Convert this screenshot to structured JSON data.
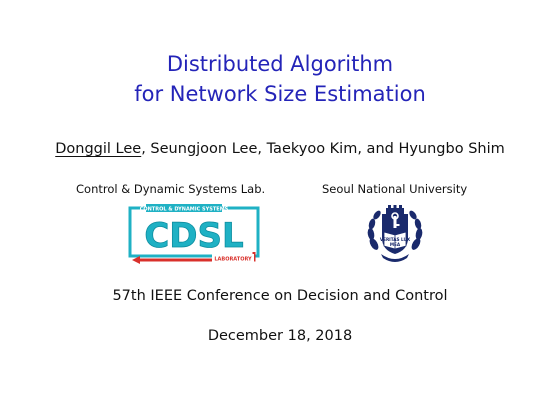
{
  "slide": {
    "title_line1": "Distributed Algorithm",
    "title_line2": "for Network Size Estimation",
    "presenter": "Donggil Lee",
    "coauthors": ", Seungjoon Lee, Taekyoo Kim, and Hyungbo Shim",
    "affiliation_left": "Control & Dynamic Systems Lab.",
    "affiliation_right": "Seoul National University",
    "conference": "57th IEEE Conference on Decision and Control",
    "date": "December 18, 2018"
  },
  "logos": {
    "cdsl": {
      "main_text": "CDSL",
      "top_text": "CONTROL & DYNAMIC SYSTEMS",
      "bottom_text": "LABORATORY",
      "colors": {
        "teal": "#1fb1c4",
        "red": "#d9302b"
      }
    },
    "snu": {
      "book_text_top": "VERITAS LUX",
      "book_text_bottom": "MEA",
      "colors": {
        "navy": "#1a2a6c"
      }
    }
  },
  "colors": {
    "title": "#2424b8",
    "text": "#111111",
    "background": "#ffffff"
  }
}
